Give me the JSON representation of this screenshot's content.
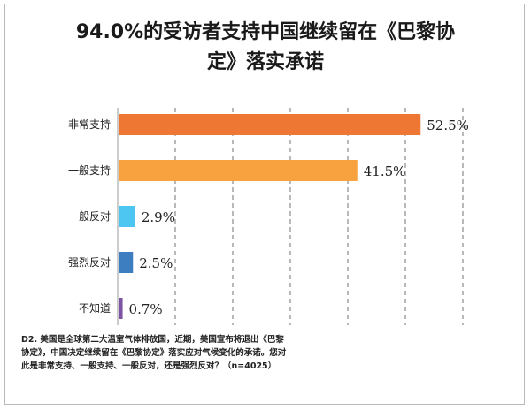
{
  "title": "94.0%的受访者支持中国继续留在《巴黎协定》落实承诺",
  "note": "D2. 美国是全球第二大温室气体排放国，近期，美国宣布将退出《巴黎协定》，中国决定继续留在《巴黎协定》落实应对气候变化的承诺。您对此是非常支持、一般支持、一般反对，还是强烈反对？（n=4025）",
  "colors": {
    "non-change-support": "#ee7733",
    "general-support": "#f7a13f",
    "general-oppose": "#4ec6f2",
    "strong-oppose": "#3d7ec1",
    "unknown": "#7d53a3",
    "gridline": "#8a8a8a"
  },
  "chart_data": {
    "type": "bar",
    "orientation": "horizontal",
    "title": "94.0%的受访者支持中国继续留在《巴黎协定》落实承诺",
    "categories": [
      "非常支持",
      "一般支持",
      "一般反对",
      "强烈反对",
      "不知道"
    ],
    "values": [
      52.5,
      41.5,
      2.9,
      2.5,
      0.7
    ],
    "value_labels": [
      "52.5%",
      "41.5%",
      "2.9%",
      "2.5%",
      "0.7%"
    ],
    "unit": "%",
    "xlim": [
      0,
      60
    ],
    "grid": "vertical dashed",
    "legend": "none"
  }
}
